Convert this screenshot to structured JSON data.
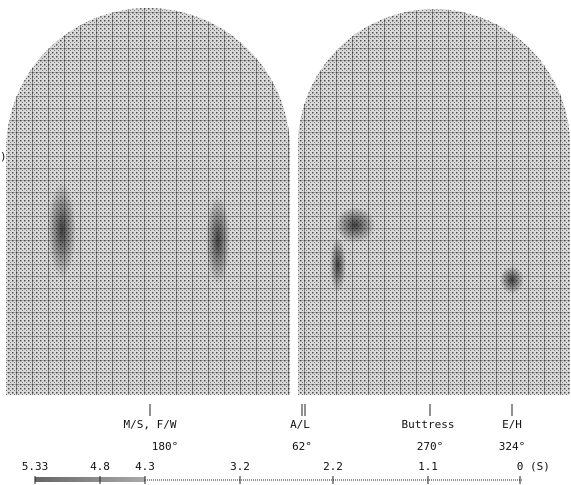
{
  "left_mark": ")",
  "labels": [
    {
      "name": "M/S, F/W",
      "angle": "180°"
    },
    {
      "name": "A/L",
      "angle": "62°"
    },
    {
      "name": "Buttress",
      "angle": "270°"
    },
    {
      "name": "E/H",
      "angle": "324°"
    }
  ],
  "scale": {
    "ticks": [
      "5.33",
      "4.8",
      "4.3",
      "3.2",
      "2.2",
      "1.1",
      "0"
    ],
    "unit": "(S)"
  }
}
